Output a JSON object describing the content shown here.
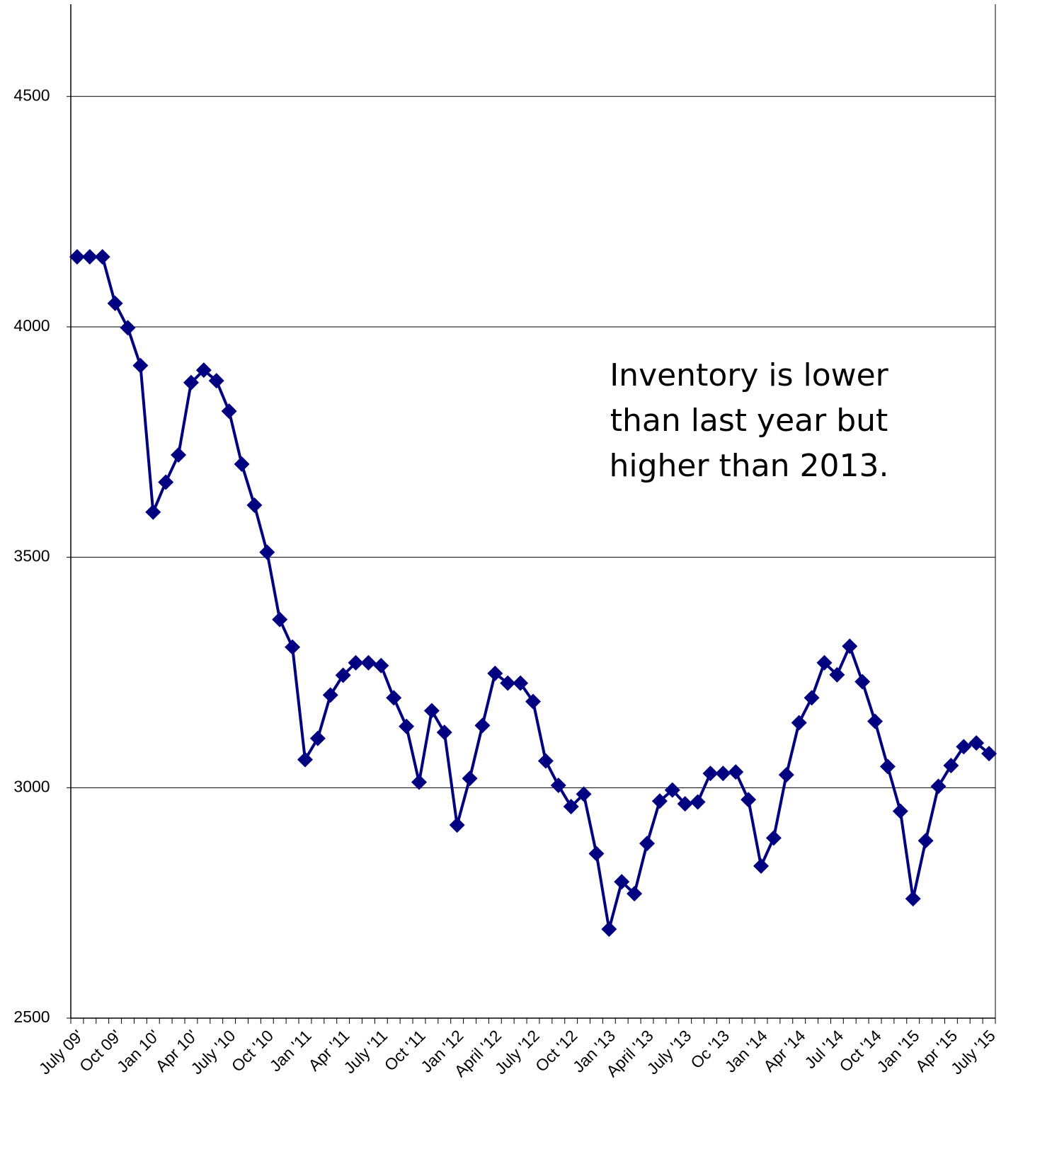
{
  "chart_data": {
    "type": "line",
    "annotation": [
      "Inventory is lower",
      "than last year but",
      "higher than 2013."
    ],
    "categories": [
      "July 09'",
      null,
      null,
      "Oct 09'",
      null,
      null,
      "Jan 10'",
      null,
      null,
      "Apr 10'",
      null,
      null,
      "July '10",
      null,
      null,
      "Oct '10",
      null,
      null,
      "Jan '11",
      null,
      null,
      "Apr '11",
      null,
      null,
      "July '11",
      null,
      null,
      "Oct '11",
      null,
      null,
      "Jan '12",
      null,
      null,
      "April '12",
      null,
      null,
      "July '12",
      null,
      null,
      "Oct '12",
      null,
      null,
      "Jan '13",
      null,
      null,
      "April '13",
      null,
      null,
      "July '13",
      null,
      null,
      "Oc '13",
      null,
      null,
      "Jan '14",
      null,
      null,
      "Apr '14",
      null,
      null,
      "Jul '14",
      null,
      null,
      "Oct '14",
      null,
      null,
      "Jan '15",
      null,
      null,
      "Apr '15",
      null,
      null,
      "July '15"
    ],
    "series": [
      {
        "color": "#000080",
        "values": [
          4152,
          4152,
          4152,
          4051,
          3998,
          3916,
          3598,
          3663,
          3722,
          3879,
          3906,
          3883,
          3817,
          3702,
          3613,
          3511,
          3365,
          3305,
          3061,
          3107,
          3201,
          3244,
          3271,
          3271,
          3265,
          3195,
          3133,
          3012,
          3167,
          3120,
          2919,
          3020,
          3135,
          3248,
          3227,
          3227,
          3187,
          3058,
          3005,
          2959,
          2986,
          2857,
          2693,
          2796,
          2770,
          2879,
          2971,
          2995,
          2965,
          2969,
          3031,
          3031,
          3034,
          2974,
          2830,
          2891,
          3028,
          3141,
          3195,
          3271,
          3245,
          3307,
          3230,
          3144,
          3046,
          2949,
          2759,
          2885,
          3003,
          3048,
          3089,
          3097,
          3074
        ]
      }
    ],
    "ylim": [
      2500,
      4700
    ],
    "yticks": [
      2500,
      3000,
      3500,
      4000,
      4500
    ],
    "grid": true
  }
}
